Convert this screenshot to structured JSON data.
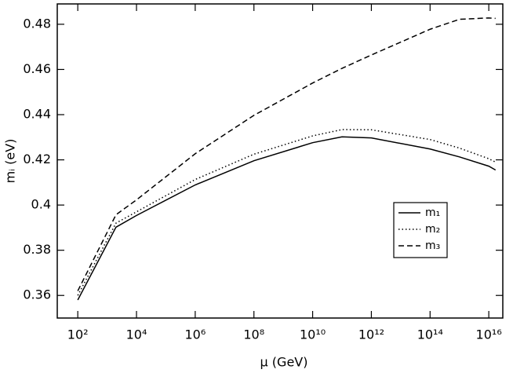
{
  "chart_data": {
    "type": "line",
    "x_label": "μ (GeV)",
    "y_label": "mᵢ (eV)",
    "x_scale": "log",
    "x": [
      100,
      2000,
      10000,
      1000000,
      100000000,
      10000000000,
      100000000000,
      1000000000000,
      100000000000000,
      1000000000000000,
      10000000000000000,
      17000000000000000
    ],
    "series": [
      {
        "name": "m₁",
        "color": "#000000",
        "style": "solid",
        "values": [
          0.358,
          0.3902,
          0.3954,
          0.4089,
          0.4196,
          0.4276,
          0.4302,
          0.4297,
          0.4248,
          0.4213,
          0.4172,
          0.4155
        ]
      },
      {
        "name": "m₂",
        "color": "#000000",
        "style": "dotted",
        "values": [
          0.36,
          0.392,
          0.397,
          0.4113,
          0.4225,
          0.4306,
          0.4334,
          0.4333,
          0.429,
          0.4252,
          0.4205,
          0.419
        ]
      },
      {
        "name": "m₃",
        "color": "#000000",
        "style": "dashed",
        "values": [
          0.362,
          0.3957,
          0.4023,
          0.4227,
          0.4397,
          0.454,
          0.4605,
          0.4664,
          0.4778,
          0.4822,
          0.4828,
          0.4826
        ]
      }
    ],
    "xlim": [
      20,
      30000000000000000
    ],
    "ylim": [
      0.35,
      0.489
    ],
    "xticks": [
      {
        "value": 100,
        "label": "10²"
      },
      {
        "value": 10000,
        "label": "10⁴"
      },
      {
        "value": 1000000,
        "label": "10⁶"
      },
      {
        "value": 100000000,
        "label": "10⁸"
      },
      {
        "value": 10000000000,
        "label": "10¹⁰"
      },
      {
        "value": 1000000000000,
        "label": "10¹²"
      },
      {
        "value": 100000000000000,
        "label": "10¹⁴"
      },
      {
        "value": 10000000000000000,
        "label": "10¹⁶"
      }
    ],
    "yticks": [
      0.36,
      0.38,
      0.4,
      0.42,
      0.44,
      0.46,
      0.48
    ],
    "grid": false,
    "legend_position": "center right"
  }
}
